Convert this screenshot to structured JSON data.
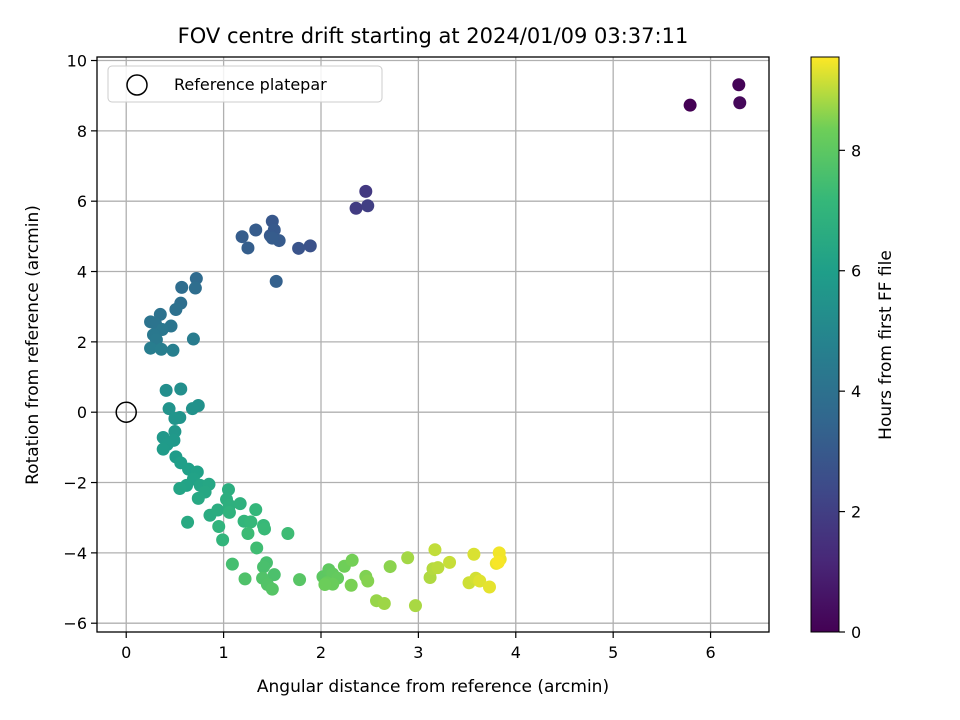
{
  "chart_data": {
    "type": "scatter",
    "title": "FOV centre drift starting at 2024/01/09 03:37:11",
    "xlabel": "Angular distance from reference (arcmin)",
    "ylabel": "Rotation from reference (arcmin)",
    "xlim": [
      -0.3,
      6.6
    ],
    "ylim": [
      -6.25,
      10.1
    ],
    "xticks": [
      0,
      1,
      2,
      3,
      4,
      5,
      6
    ],
    "yticks": [
      -6,
      -4,
      -2,
      0,
      2,
      4,
      6,
      8,
      10
    ],
    "grid": true,
    "legend": {
      "position": "top-left",
      "entries": [
        {
          "label": "Reference platepar",
          "marker": "open-circle"
        }
      ]
    },
    "colorbar": {
      "label": "Hours from first FF file",
      "range": [
        0,
        9.55
      ],
      "ticks": [
        0,
        2,
        4,
        6,
        8
      ],
      "colormap": "viridis"
    },
    "reference": {
      "x": 0,
      "y": 0
    },
    "series": [
      {
        "name": "",
        "points": [
          {
            "x": 5.79,
            "y": 8.73,
            "hours": 0.0
          },
          {
            "x": 6.29,
            "y": 9.31,
            "hours": 0.1
          },
          {
            "x": 6.3,
            "y": 8.8,
            "hours": 0.2
          },
          {
            "x": 2.46,
            "y": 6.28,
            "hours": 1.8
          },
          {
            "x": 2.36,
            "y": 5.8,
            "hours": 1.9
          },
          {
            "x": 2.48,
            "y": 5.87,
            "hours": 2.0
          },
          {
            "x": 1.89,
            "y": 4.73,
            "hours": 2.7
          },
          {
            "x": 1.77,
            "y": 4.66,
            "hours": 2.8
          },
          {
            "x": 1.5,
            "y": 5.43,
            "hours": 2.9
          },
          {
            "x": 1.52,
            "y": 5.18,
            "hours": 3.0
          },
          {
            "x": 1.48,
            "y": 5.02,
            "hours": 3.0
          },
          {
            "x": 1.57,
            "y": 4.88,
            "hours": 3.05
          },
          {
            "x": 1.33,
            "y": 5.18,
            "hours": 3.1
          },
          {
            "x": 1.19,
            "y": 4.99,
            "hours": 3.15
          },
          {
            "x": 1.25,
            "y": 4.67,
            "hours": 3.2
          },
          {
            "x": 1.54,
            "y": 3.72,
            "hours": 3.3
          },
          {
            "x": 1.5,
            "y": 4.95,
            "hours": 3.1
          },
          {
            "x": 0.72,
            "y": 3.8,
            "hours": 3.7
          },
          {
            "x": 0.57,
            "y": 3.55,
            "hours": 3.8
          },
          {
            "x": 0.71,
            "y": 3.53,
            "hours": 3.85
          },
          {
            "x": 0.56,
            "y": 3.1,
            "hours": 3.9
          },
          {
            "x": 0.51,
            "y": 2.92,
            "hours": 4.0
          },
          {
            "x": 0.35,
            "y": 2.78,
            "hours": 4.05
          },
          {
            "x": 0.25,
            "y": 2.57,
            "hours": 4.1
          },
          {
            "x": 0.3,
            "y": 2.52,
            "hours": 4.15
          },
          {
            "x": 0.46,
            "y": 2.45,
            "hours": 4.2
          },
          {
            "x": 0.37,
            "y": 2.35,
            "hours": 4.25
          },
          {
            "x": 0.28,
            "y": 2.2,
            "hours": 4.3
          },
          {
            "x": 0.31,
            "y": 2.06,
            "hours": 4.35
          },
          {
            "x": 0.69,
            "y": 2.08,
            "hours": 4.5
          },
          {
            "x": 0.25,
            "y": 1.82,
            "hours": 4.55
          },
          {
            "x": 0.36,
            "y": 1.79,
            "hours": 4.6
          },
          {
            "x": 0.48,
            "y": 1.76,
            "hours": 4.65
          },
          {
            "x": 0.41,
            "y": 0.62,
            "hours": 5.3
          },
          {
            "x": 0.56,
            "y": 0.66,
            "hours": 5.35
          },
          {
            "x": 0.74,
            "y": 0.19,
            "hours": 5.4
          },
          {
            "x": 0.68,
            "y": 0.1,
            "hours": 5.45
          },
          {
            "x": 0.44,
            "y": 0.1,
            "hours": 5.5
          },
          {
            "x": 0.55,
            "y": -0.15,
            "hours": 5.55
          },
          {
            "x": 0.5,
            "y": -0.18,
            "hours": 5.6
          },
          {
            "x": 0.5,
            "y": -0.55,
            "hours": 5.65
          },
          {
            "x": 0.38,
            "y": -0.72,
            "hours": 5.7
          },
          {
            "x": 0.49,
            "y": -0.8,
            "hours": 5.75
          },
          {
            "x": 0.42,
            "y": -0.92,
            "hours": 5.8
          },
          {
            "x": 0.38,
            "y": -1.05,
            "hours": 5.85
          },
          {
            "x": 0.51,
            "y": -1.27,
            "hours": 5.9
          },
          {
            "x": 0.56,
            "y": -1.44,
            "hours": 6.0
          },
          {
            "x": 0.64,
            "y": -1.62,
            "hours": 6.05
          },
          {
            "x": 0.73,
            "y": -1.7,
            "hours": 6.1
          },
          {
            "x": 0.69,
            "y": -1.9,
            "hours": 6.15
          },
          {
            "x": 0.62,
            "y": -2.08,
            "hours": 6.2
          },
          {
            "x": 0.55,
            "y": -2.17,
            "hours": 6.25
          },
          {
            "x": 0.76,
            "y": -2.08,
            "hours": 6.3
          },
          {
            "x": 0.85,
            "y": -2.05,
            "hours": 6.35
          },
          {
            "x": 0.81,
            "y": -2.27,
            "hours": 6.4
          },
          {
            "x": 0.74,
            "y": -2.45,
            "hours": 6.45
          },
          {
            "x": 0.63,
            "y": -3.13,
            "hours": 6.5
          },
          {
            "x": 0.86,
            "y": -2.93,
            "hours": 6.6
          },
          {
            "x": 0.94,
            "y": -2.78,
            "hours": 6.65
          },
          {
            "x": 1.05,
            "y": -2.2,
            "hours": 6.7
          },
          {
            "x": 1.03,
            "y": -2.48,
            "hours": 6.75
          },
          {
            "x": 1.06,
            "y": -2.65,
            "hours": 6.8
          },
          {
            "x": 1.17,
            "y": -2.6,
            "hours": 6.85
          },
          {
            "x": 1.06,
            "y": -2.85,
            "hours": 6.9
          },
          {
            "x": 0.95,
            "y": -3.25,
            "hours": 6.95
          },
          {
            "x": 0.99,
            "y": -3.63,
            "hours": 7.0
          },
          {
            "x": 1.21,
            "y": -3.1,
            "hours": 7.05
          },
          {
            "x": 1.33,
            "y": -2.77,
            "hours": 7.1
          },
          {
            "x": 1.28,
            "y": -3.12,
            "hours": 7.15
          },
          {
            "x": 1.41,
            "y": -3.22,
            "hours": 7.2
          },
          {
            "x": 1.42,
            "y": -3.32,
            "hours": 7.25
          },
          {
            "x": 1.25,
            "y": -3.45,
            "hours": 7.3
          },
          {
            "x": 1.66,
            "y": -3.45,
            "hours": 7.35
          },
          {
            "x": 1.34,
            "y": -3.86,
            "hours": 7.4
          },
          {
            "x": 1.09,
            "y": -4.32,
            "hours": 7.5
          },
          {
            "x": 1.44,
            "y": -4.28,
            "hours": 7.55
          },
          {
            "x": 1.41,
            "y": -4.4,
            "hours": 7.6
          },
          {
            "x": 1.52,
            "y": -4.62,
            "hours": 7.65
          },
          {
            "x": 1.22,
            "y": -4.74,
            "hours": 7.7
          },
          {
            "x": 1.4,
            "y": -4.72,
            "hours": 7.75
          },
          {
            "x": 1.45,
            "y": -4.9,
            "hours": 7.8
          },
          {
            "x": 1.5,
            "y": -5.03,
            "hours": 7.85
          },
          {
            "x": 1.78,
            "y": -4.76,
            "hours": 7.9
          },
          {
            "x": 2.02,
            "y": -4.68,
            "hours": 8.0
          },
          {
            "x": 2.08,
            "y": -4.48,
            "hours": 8.05
          },
          {
            "x": 2.12,
            "y": -4.6,
            "hours": 8.1
          },
          {
            "x": 2.17,
            "y": -4.72,
            "hours": 8.15
          },
          {
            "x": 2.06,
            "y": -4.85,
            "hours": 8.2
          },
          {
            "x": 2.12,
            "y": -4.89,
            "hours": 8.25
          },
          {
            "x": 2.04,
            "y": -4.9,
            "hours": 8.3
          },
          {
            "x": 2.24,
            "y": -4.38,
            "hours": 8.35
          },
          {
            "x": 2.32,
            "y": -4.21,
            "hours": 8.4
          },
          {
            "x": 2.31,
            "y": -4.92,
            "hours": 8.45
          },
          {
            "x": 2.46,
            "y": -4.67,
            "hours": 8.5
          },
          {
            "x": 2.48,
            "y": -4.8,
            "hours": 8.55
          },
          {
            "x": 2.71,
            "y": -4.39,
            "hours": 8.6
          },
          {
            "x": 2.57,
            "y": -5.36,
            "hours": 8.7
          },
          {
            "x": 2.65,
            "y": -5.44,
            "hours": 8.75
          },
          {
            "x": 2.89,
            "y": -4.14,
            "hours": 8.8
          },
          {
            "x": 2.97,
            "y": -5.5,
            "hours": 8.85
          },
          {
            "x": 3.12,
            "y": -4.7,
            "hours": 8.9
          },
          {
            "x": 3.15,
            "y": -4.45,
            "hours": 8.95
          },
          {
            "x": 3.2,
            "y": -4.42,
            "hours": 9.0
          },
          {
            "x": 3.17,
            "y": -3.91,
            "hours": 9.05
          },
          {
            "x": 3.32,
            "y": -4.27,
            "hours": 9.1
          },
          {
            "x": 3.52,
            "y": -4.85,
            "hours": 9.15
          },
          {
            "x": 3.59,
            "y": -4.72,
            "hours": 9.2
          },
          {
            "x": 3.57,
            "y": -4.04,
            "hours": 9.25
          },
          {
            "x": 3.63,
            "y": -4.8,
            "hours": 9.3
          },
          {
            "x": 3.73,
            "y": -4.97,
            "hours": 9.35
          },
          {
            "x": 3.8,
            "y": -4.3,
            "hours": 9.4
          },
          {
            "x": 3.84,
            "y": -4.18,
            "hours": 9.42
          },
          {
            "x": 3.83,
            "y": -4.0,
            "hours": 9.45
          },
          {
            "x": 3.82,
            "y": -4.27,
            "hours": 9.5
          }
        ]
      }
    ]
  }
}
